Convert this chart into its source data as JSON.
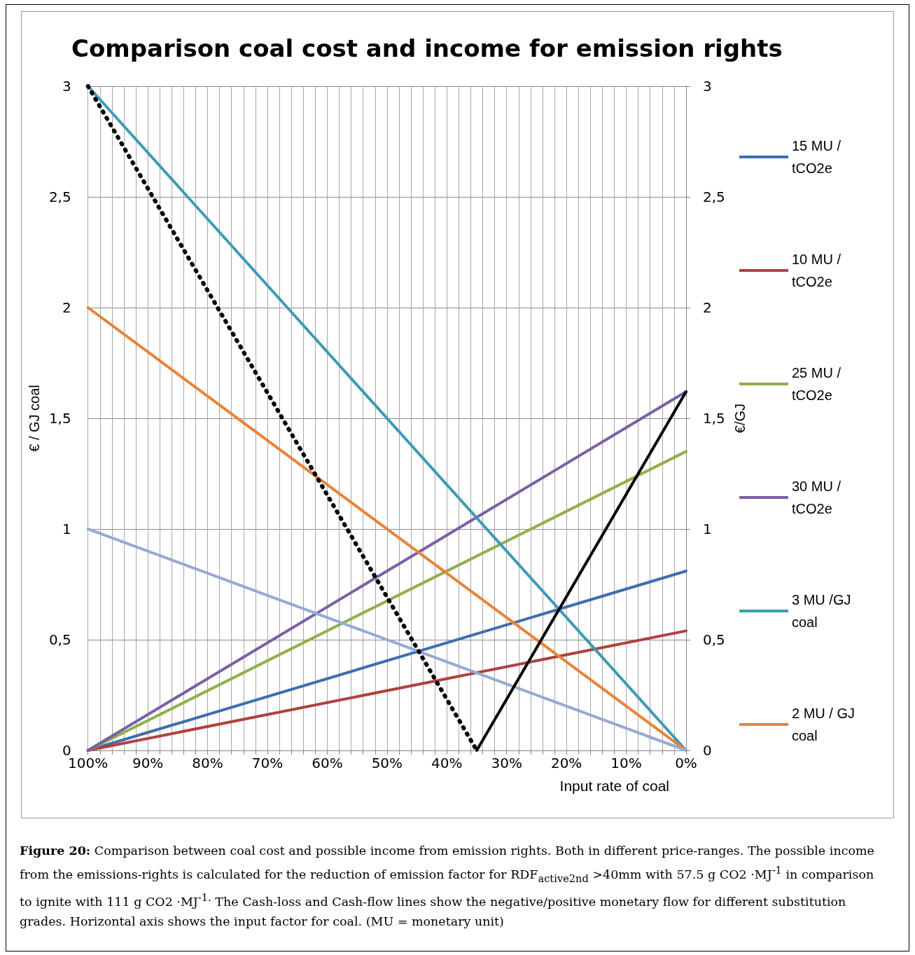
{
  "chart_data": {
    "type": "line",
    "title": "Comparison coal cost and income for emission rights",
    "xlabel": "Input rate of coal",
    "ylabel": "€ / GJ coal",
    "y2label": "€/GJ",
    "xlim": [
      100,
      0
    ],
    "xticks": [
      {
        "value": 100,
        "label": "100%"
      },
      {
        "value": 98,
        "label": null
      },
      {
        "value": 96,
        "label": null
      },
      {
        "value": 94,
        "label": null
      },
      {
        "value": 92,
        "label": null
      },
      {
        "value": 90,
        "label": "90%"
      },
      {
        "value": 88,
        "label": null
      },
      {
        "value": 86,
        "label": null
      },
      {
        "value": 84,
        "label": null
      },
      {
        "value": 82,
        "label": null
      },
      {
        "value": 80,
        "label": "80%"
      },
      {
        "value": 78,
        "label": null
      },
      {
        "value": 76,
        "label": null
      },
      {
        "value": 74,
        "label": null
      },
      {
        "value": 72,
        "label": null
      },
      {
        "value": 70,
        "label": "70%"
      },
      {
        "value": 68,
        "label": null
      },
      {
        "value": 66,
        "label": null
      },
      {
        "value": 64,
        "label": null
      },
      {
        "value": 62,
        "label": null
      },
      {
        "value": 60,
        "label": "60%"
      },
      {
        "value": 58,
        "label": null
      },
      {
        "value": 56,
        "label": null
      },
      {
        "value": 54,
        "label": null
      },
      {
        "value": 52,
        "label": null
      },
      {
        "value": 50,
        "label": "50%"
      },
      {
        "value": 48,
        "label": null
      },
      {
        "value": 46,
        "label": null
      },
      {
        "value": 44,
        "label": null
      },
      {
        "value": 42,
        "label": null
      },
      {
        "value": 40,
        "label": "40%"
      },
      {
        "value": 38,
        "label": null
      },
      {
        "value": 36,
        "label": null
      },
      {
        "value": 34,
        "label": null
      },
      {
        "value": 32,
        "label": null
      },
      {
        "value": 30,
        "label": "30%"
      },
      {
        "value": 28,
        "label": null
      },
      {
        "value": 26,
        "label": null
      },
      {
        "value": 24,
        "label": null
      },
      {
        "value": 22,
        "label": null
      },
      {
        "value": 20,
        "label": "20%"
      },
      {
        "value": 18,
        "label": null
      },
      {
        "value": 16,
        "label": null
      },
      {
        "value": 14,
        "label": null
      },
      {
        "value": 12,
        "label": null
      },
      {
        "value": 10,
        "label": "10%"
      },
      {
        "value": 8,
        "label": null
      },
      {
        "value": 6,
        "label": null
      },
      {
        "value": 4,
        "label": null
      },
      {
        "value": 2,
        "label": null
      },
      {
        "value": 0,
        "label": "0%"
      }
    ],
    "ylim": [
      0,
      3
    ],
    "yticks": [
      0,
      {
        "value": 0.5,
        "label": "0,5"
      },
      1,
      {
        "value": 1.5,
        "label": "1,5"
      },
      2,
      {
        "value": 2.5,
        "label": "2,5"
      },
      3
    ],
    "y2lim": [
      0,
      3
    ],
    "y2ticks": [
      0,
      {
        "value": 0.5,
        "label": "0,5"
      },
      1,
      {
        "value": 1.5,
        "label": "1,5"
      },
      2,
      {
        "value": 2.5,
        "label": "2,5"
      },
      3
    ],
    "grid": true,
    "legend": "right",
    "marker": "none",
    "series": [
      {
        "name": "15 MU / tCO2e",
        "color": "#3f6eb0",
        "x": [
          100,
          0
        ],
        "values": [
          0,
          0.81
        ]
      },
      {
        "name": "10 MU / tCO2e",
        "color": "#b0413e",
        "x": [
          100,
          0
        ],
        "values": [
          0,
          0.54
        ]
      },
      {
        "name": "25 MU / tCO2e",
        "color": "#8eb04a",
        "x": [
          100,
          0
        ],
        "values": [
          0,
          1.35
        ]
      },
      {
        "name": "30 MU / tCO2e",
        "color": "#7b5ea7",
        "x": [
          100,
          0
        ],
        "values": [
          0,
          1.62
        ]
      },
      {
        "name": "3 MU /GJ coal",
        "color": "#3d9bb5",
        "x": [
          100,
          0
        ],
        "values": [
          3,
          0
        ]
      },
      {
        "name": "2 MU / GJ coal",
        "color": "#e8833a",
        "x": [
          100,
          0
        ],
        "values": [
          2,
          0
        ]
      },
      {
        "color": "#95aad3",
        "x": [
          100,
          0
        ],
        "values": [
          1,
          0
        ]
      },
      {
        "color": "#000000",
        "x": [
          100,
          35
        ],
        "values": [
          3,
          0
        ],
        "line_style": "dotted"
      },
      {
        "color": "#000000",
        "x": [
          35,
          0
        ],
        "values": [
          0,
          1.62
        ]
      }
    ],
    "annotations": [
      "Figure 20: Comparison between coal cost and possible income from emission rights. Both in different price-ranges. The possible income from the emissions-rights is calculated for the reduction of emission factor for RDF$_{active2nd}$ >40mm with 57.5 g CO2 ·MJ$^{-1}$ in comparison to ignite with 111 g CO2 ·MJ$^{-1.}$  The Cash-loss and Cash-flow lines show the negative/positive monetary flow for different substitution grades. Horizontal axis shows the input factor for coal. (MU = monetary unit)"
    ]
  }
}
